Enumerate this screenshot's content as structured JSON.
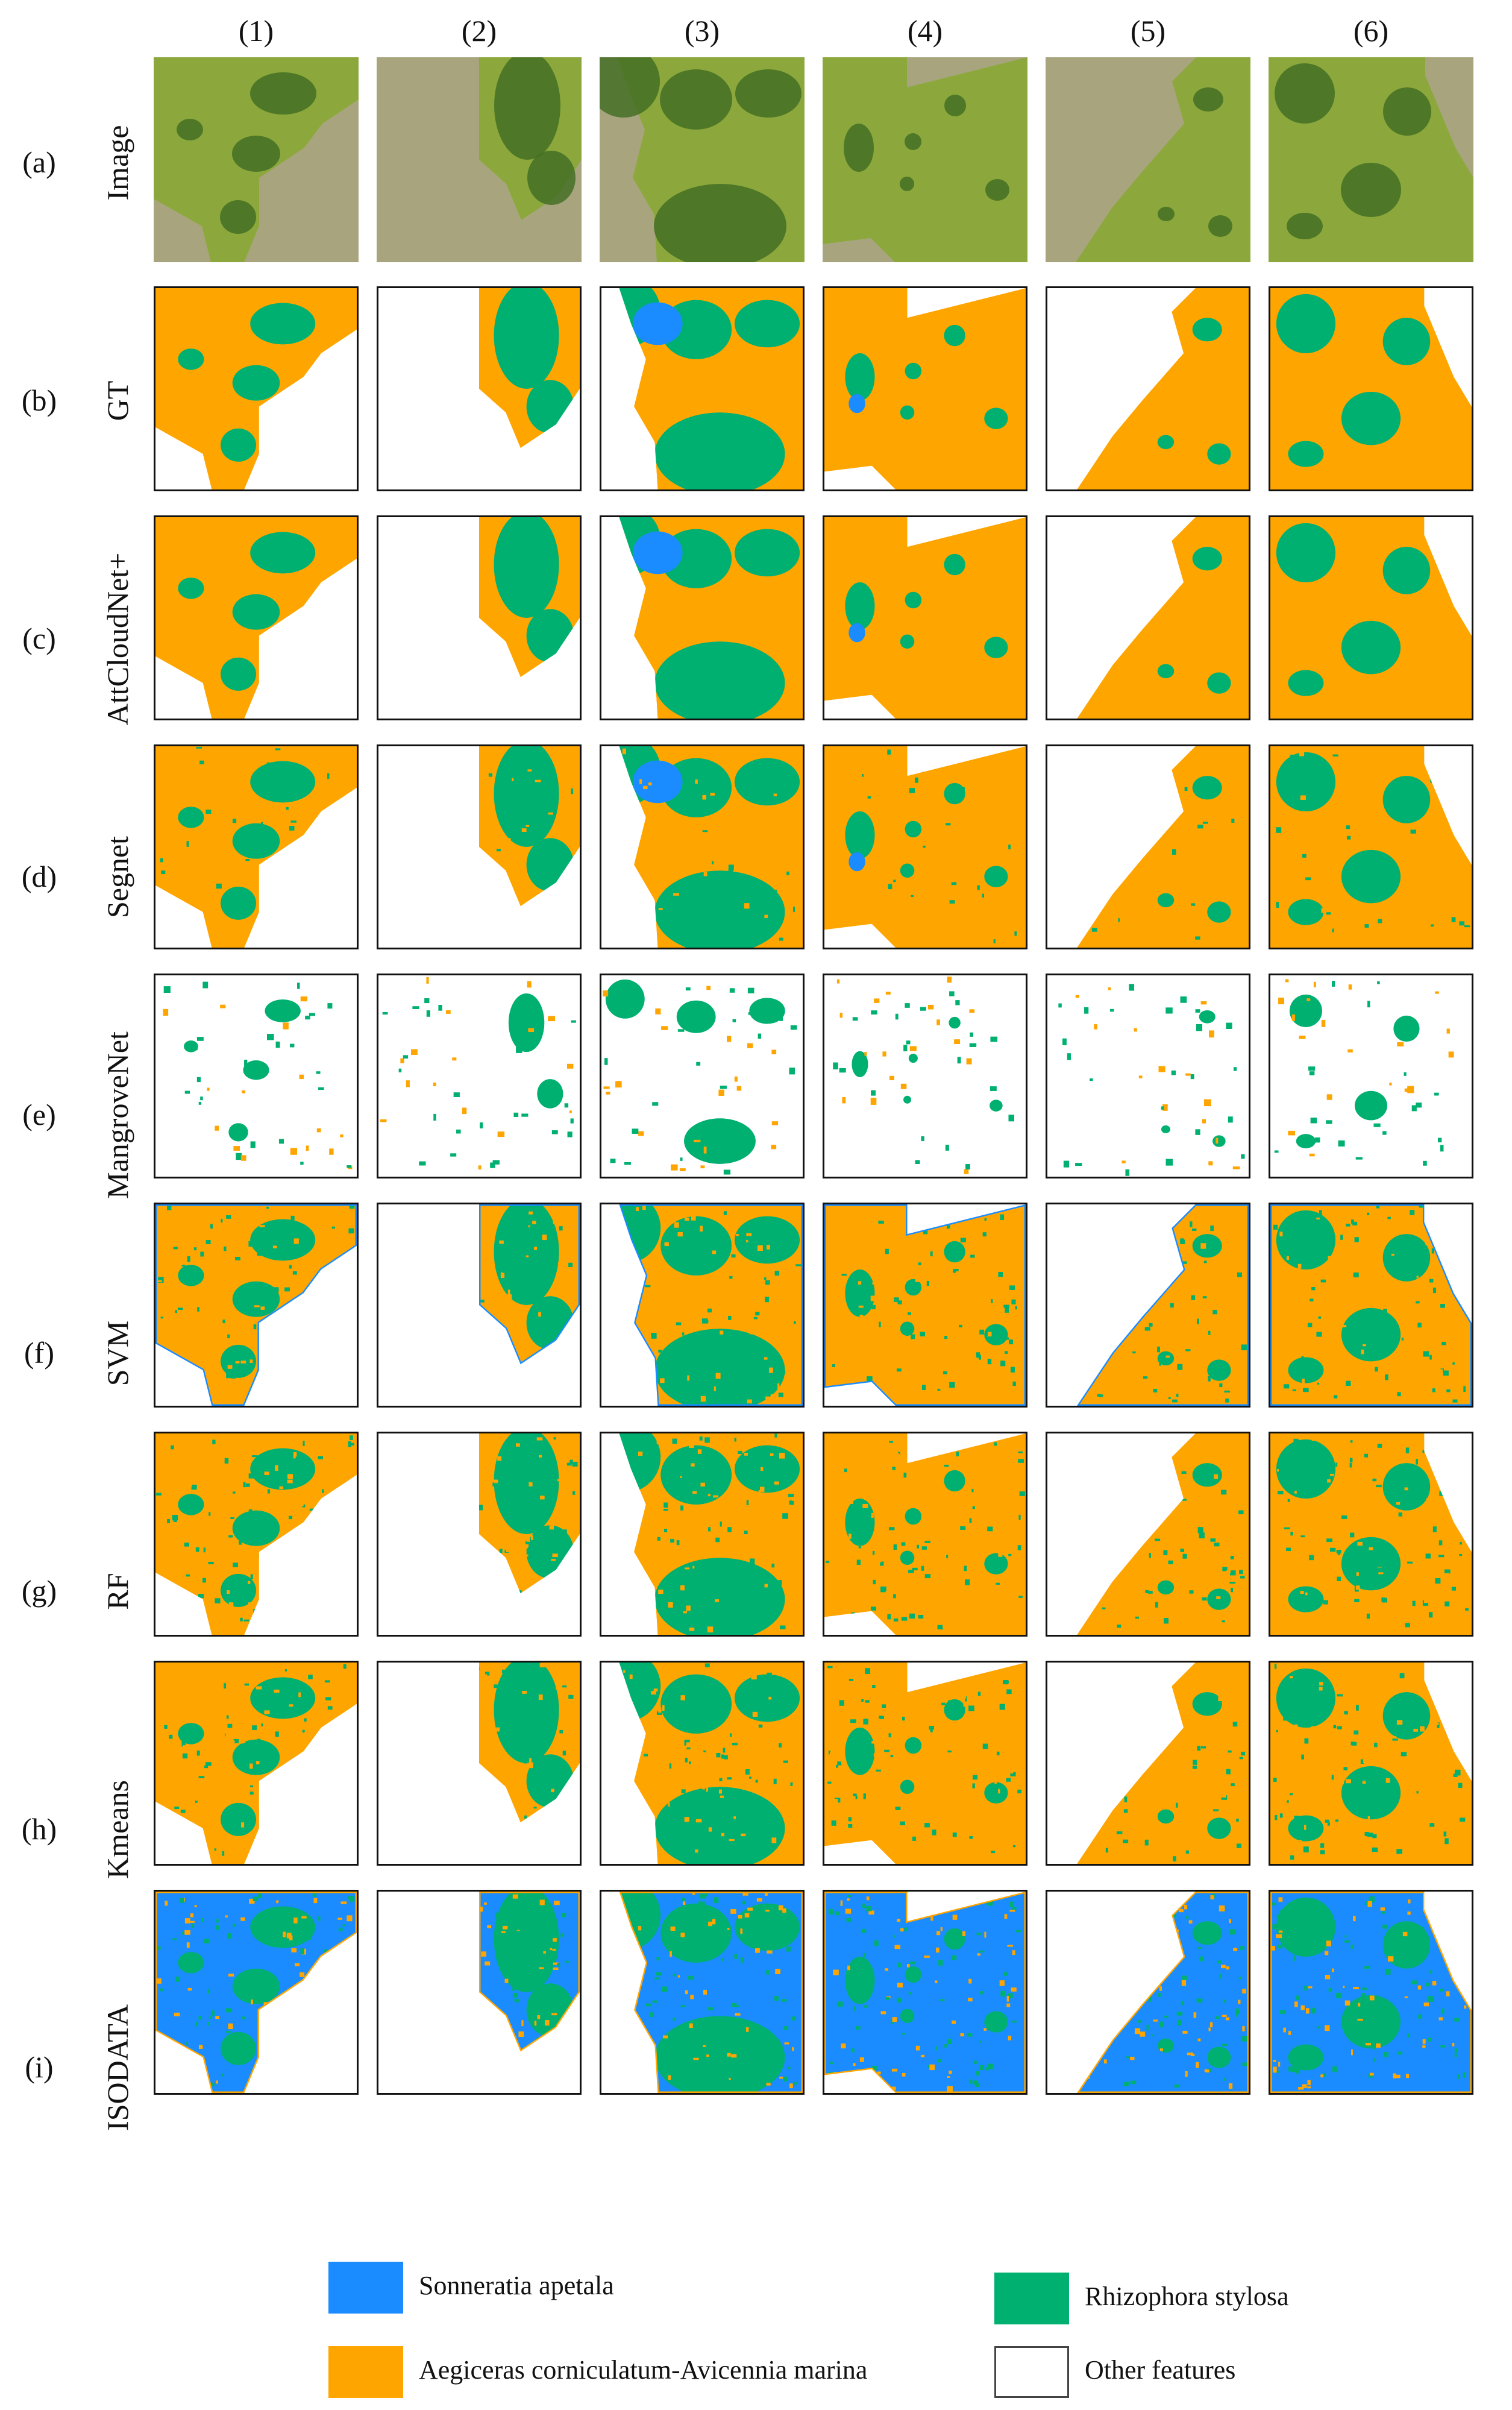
{
  "columns": [
    "(1)",
    "(2)",
    "(3)",
    "(4)",
    "(5)",
    "(6)"
  ],
  "rows": [
    {
      "letter": "(a)",
      "title": "Image"
    },
    {
      "letter": "(b)",
      "title": "GT"
    },
    {
      "letter": "(c)",
      "title": "AttCloudNet+"
    },
    {
      "letter": "(d)",
      "title": "Segnet"
    },
    {
      "letter": "(e)",
      "title": "MangroveNet"
    },
    {
      "letter": "(f)",
      "title": "SVM"
    },
    {
      "letter": "(g)",
      "title": "RF"
    },
    {
      "letter": "(h)",
      "title": "Kmeans"
    },
    {
      "letter": "(i)",
      "title": "ISODATA"
    }
  ],
  "legend": [
    {
      "label": "Sonneratia apetala",
      "color": "#1a8cff"
    },
    {
      "label": "Rhizophora stylosa",
      "color": "#00b070"
    },
    {
      "label": "Aegiceras corniculatum-Avicennia marina",
      "color": "#ffa500"
    },
    {
      "label": "Other features",
      "color": "#ffffff"
    }
  ],
  "colors": {
    "sonneratia": "#1a8cff",
    "rhizophora": "#00b070",
    "aegiceras": "#ffa500",
    "other": "#ffffff",
    "water": "#a8a57e",
    "canopy_light": "#8ca83c",
    "canopy_dark": "#3f6b22"
  }
}
